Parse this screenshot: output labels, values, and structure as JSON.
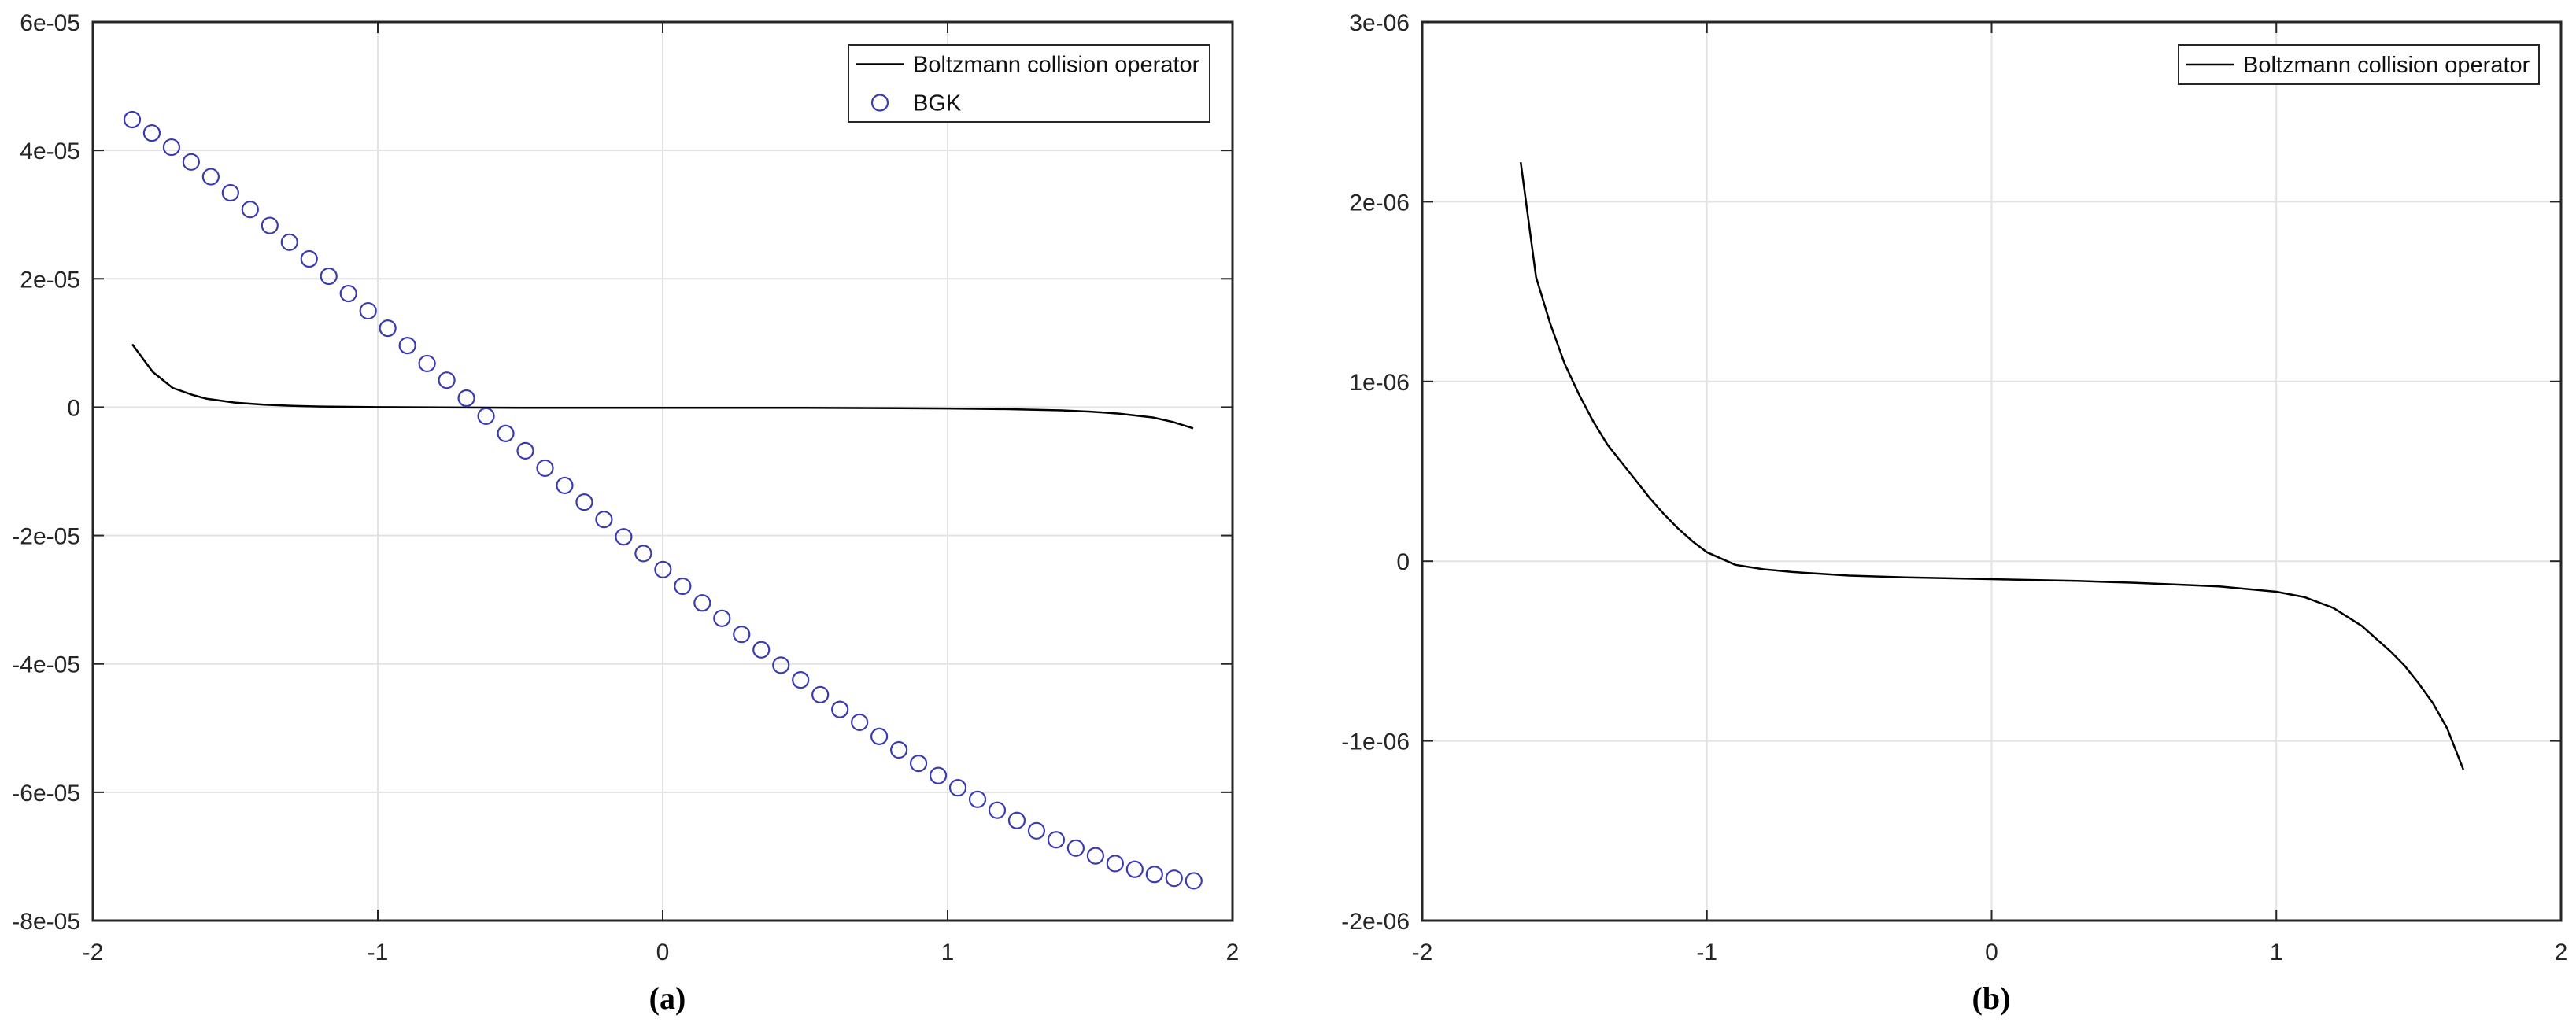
{
  "chart_data": [
    {
      "type": "line",
      "panel_label": "(a)",
      "title": "",
      "xlabel": "",
      "ylabel": "",
      "xlim": [
        -2,
        2
      ],
      "ylim": [
        -8e-05,
        6e-05
      ],
      "grid": true,
      "legend_position": "top-right",
      "x_ticks": [
        -2,
        -1,
        0,
        1,
        2
      ],
      "x_tick_labels": [
        "-2",
        "-1",
        "0",
        "1",
        "2"
      ],
      "y_ticks": [
        6e-05,
        4e-05,
        2e-05,
        0,
        -2e-05,
        -4e-05,
        -6e-05,
        -8e-05
      ],
      "y_tick_labels": [
        "6e-05",
        "4e-05",
        "2e-05",
        "0",
        "-2e-05",
        "-4e-05",
        "-6e-05",
        "-8e-05"
      ],
      "series": [
        {
          "name": "Boltzmann collision operator",
          "style": "line",
          "color": "#000000",
          "x": [
            -1.862,
            -1.79,
            -1.72,
            -1.65,
            -1.6,
            -1.5,
            -1.4,
            -1.3,
            -1.2,
            -1.0,
            -0.5,
            0.0,
            0.5,
            1.0,
            1.2,
            1.4,
            1.5,
            1.6,
            1.72,
            1.79,
            1.862
          ],
          "y": [
            9.8e-06,
            5.5e-06,
            3e-06,
            1.9e-06,
            1.3e-06,
            7e-07,
            4e-07,
            2e-07,
            1e-07,
            0.0,
            -1e-07,
            -1e-07,
            -1e-07,
            -2e-07,
            -3e-07,
            -5e-07,
            -7e-07,
            -1e-06,
            -1.6e-06,
            -2.3e-06,
            -3.3e-06
          ]
        },
        {
          "name": "BGK",
          "style": "markers-circle",
          "color": "#3b3bb0",
          "x_start": -1.862,
          "x_step": 0.069,
          "y": [
            4.48e-05,
            4.27e-05,
            4.05e-05,
            3.82e-05,
            3.59e-05,
            3.34e-05,
            3.08e-05,
            2.83e-05,
            2.57e-05,
            2.31e-05,
            2.04e-05,
            1.77e-05,
            1.5e-05,
            1.23e-05,
            9.6e-06,
            6.8e-06,
            4.2e-06,
            1.4e-06,
            -1.4e-06,
            -4.1e-06,
            -6.8e-06,
            -9.5e-06,
            -1.22e-05,
            -1.48e-05,
            -1.75e-05,
            -2.02e-05,
            -2.28e-05,
            -2.53e-05,
            -2.79e-05,
            -3.05e-05,
            -3.29e-05,
            -3.54e-05,
            -3.78e-05,
            -4.02e-05,
            -4.25e-05,
            -4.48e-05,
            -4.71e-05,
            -4.91e-05,
            -5.13e-05,
            -5.34e-05,
            -5.55e-05,
            -5.74e-05,
            -5.93e-05,
            -6.11e-05,
            -6.28e-05,
            -6.44e-05,
            -6.6e-05,
            -6.74e-05,
            -6.87e-05,
            -6.99e-05,
            -7.11e-05,
            -7.2e-05,
            -7.28e-05,
            -7.34e-05,
            -7.38e-05
          ]
        }
      ]
    },
    {
      "type": "line",
      "panel_label": "(b)",
      "title": "",
      "xlabel": "",
      "ylabel": "",
      "xlim": [
        -2,
        2
      ],
      "ylim": [
        -2e-06,
        3e-06
      ],
      "grid": true,
      "legend_position": "top-right",
      "x_ticks": [
        -2,
        -1,
        0,
        1,
        2
      ],
      "x_tick_labels": [
        "-2",
        "-1",
        "0",
        "1",
        "2"
      ],
      "y_ticks": [
        3e-06,
        2e-06,
        1e-06,
        0,
        -1e-06,
        -2e-06
      ],
      "y_tick_labels": [
        "3e-06",
        "2e-06",
        "1e-06",
        "0",
        "-1e-06",
        "-2e-06"
      ],
      "series": [
        {
          "name": "Boltzmann collision operator",
          "style": "line",
          "color": "#000000",
          "x": [
            -1.654,
            -1.6,
            -1.55,
            -1.5,
            -1.45,
            -1.4,
            -1.35,
            -1.3,
            -1.25,
            -1.2,
            -1.15,
            -1.1,
            -1.05,
            -1.0,
            -0.9,
            -0.8,
            -0.7,
            -0.5,
            -0.3,
            0.0,
            0.3,
            0.5,
            0.8,
            1.0,
            1.1,
            1.2,
            1.3,
            1.4,
            1.45,
            1.5,
            1.55,
            1.6,
            1.657
          ],
          "y": [
            2.22e-06,
            1.58e-06,
            1.32e-06,
            1.1e-06,
            9.3e-07,
            7.8e-07,
            6.5e-07,
            5.5e-07,
            4.5e-07,
            3.5e-07,
            2.6e-07,
            1.8e-07,
            1.1e-07,
            5e-08,
            -2e-08,
            -4.5e-08,
            -6e-08,
            -8e-08,
            -9e-08,
            -1e-07,
            -1.1e-07,
            -1.2e-07,
            -1.4e-07,
            -1.7e-07,
            -2e-07,
            -2.6e-07,
            -3.6e-07,
            -5e-07,
            -5.8e-07,
            -6.8e-07,
            -7.9e-07,
            -9.3e-07,
            -1.16e-06
          ]
        }
      ]
    }
  ],
  "panels": {
    "a": {
      "caption": "(a)",
      "legend": [
        "Boltzmann collision operator",
        "BGK"
      ]
    },
    "b": {
      "caption": "(b)",
      "legend": [
        "Boltzmann collision operator"
      ]
    }
  },
  "colors": {
    "grid": "#e3e3e3",
    "axes": "#262626",
    "bgk_marker": "#3b3bb0",
    "line": "#000000"
  }
}
